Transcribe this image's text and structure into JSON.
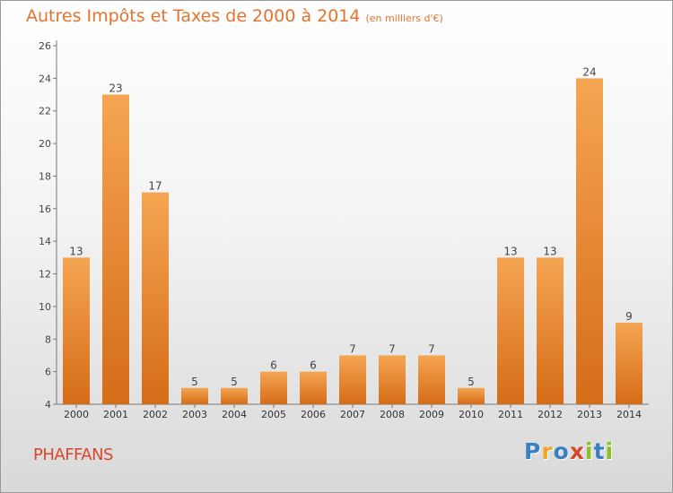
{
  "title": {
    "main": "Autres Impôts et Taxes de 2000 à 2014",
    "unit": "(en milliers d'€)"
  },
  "commune": "PHAFFANS",
  "logo": {
    "text": "Proxiti",
    "letters": [
      {
        "ch": "P",
        "color": "#3b7fc4"
      },
      {
        "ch": "r",
        "color": "#f2a623"
      },
      {
        "ch": "o",
        "color": "#3b7fc4"
      },
      {
        "ch": "x",
        "color": "#d9472b"
      },
      {
        "ch": "i",
        "color": "#8cbf26"
      },
      {
        "ch": "t",
        "color": "#3b7fc4"
      },
      {
        "ch": "i",
        "color": "#8cbf26"
      }
    ]
  },
  "colors": {
    "title": "#e3732f",
    "commune": "#d9472b",
    "bar_light": "#f5a552",
    "bar_dark": "#d56c18"
  },
  "chart_data": {
    "type": "bar",
    "categories": [
      "2000",
      "2001",
      "2002",
      "2003",
      "2004",
      "2005",
      "2006",
      "2007",
      "2008",
      "2009",
      "2010",
      "2011",
      "2012",
      "2013",
      "2014"
    ],
    "values": [
      13,
      23,
      17,
      5,
      5,
      6,
      6,
      7,
      7,
      7,
      5,
      13,
      13,
      24,
      9
    ],
    "data_labels": [
      "13",
      "23",
      "17",
      "5",
      "5",
      "6",
      "6",
      "7",
      "7",
      "7",
      "5",
      "13",
      "13",
      "24",
      "9"
    ],
    "ylim": [
      4,
      26
    ],
    "yticks": [
      4,
      6,
      8,
      10,
      12,
      14,
      16,
      18,
      20,
      22,
      24,
      26
    ],
    "grid": false,
    "legend": "none",
    "xlabel": "",
    "ylabel": ""
  }
}
